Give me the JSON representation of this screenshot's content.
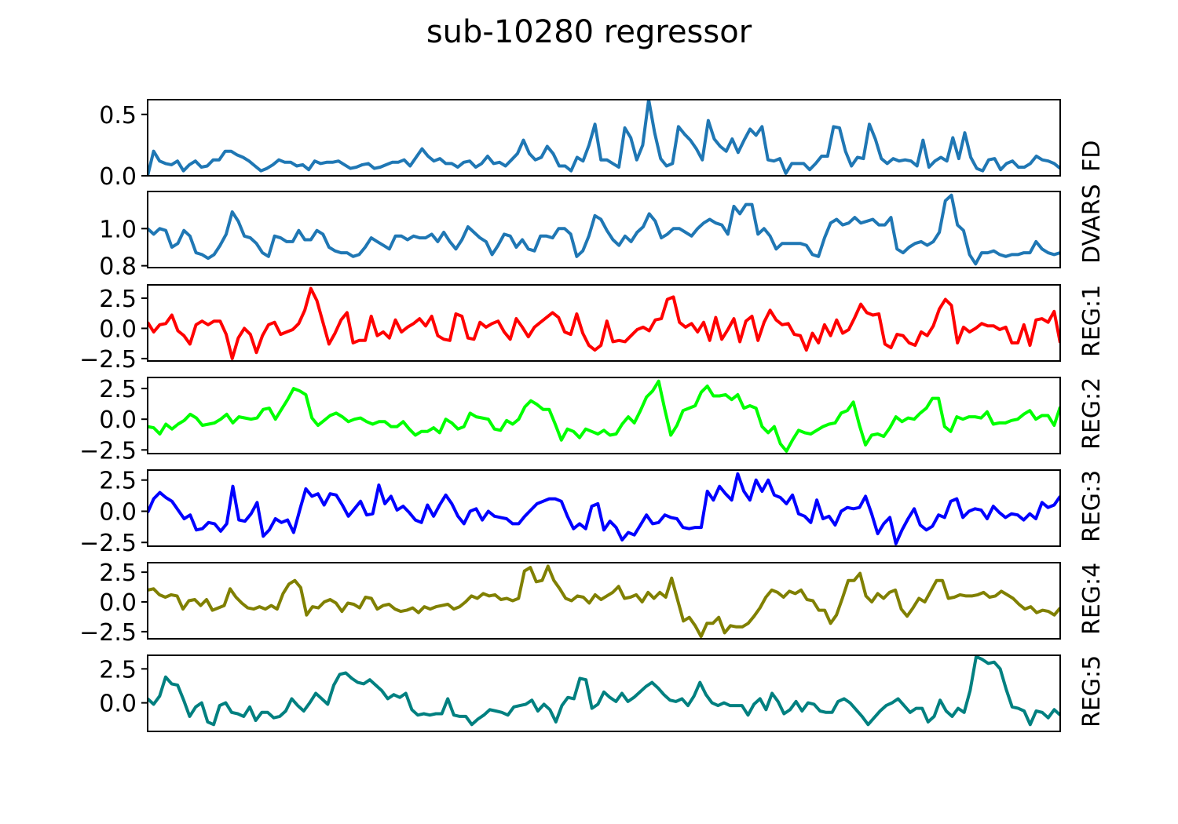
{
  "title": "sub-10280 regressor",
  "chart_data": {
    "type": "line",
    "title": "sub-10280 regressor",
    "n_points": 200,
    "grid": false,
    "x_ticks_visible": false,
    "panels": [
      {
        "name": "FD",
        "color": "#1f77b4",
        "ylim": [
          0.0,
          0.62
        ],
        "yticks": [
          0.0,
          0.5
        ],
        "ytick_labels": [
          "0.0",
          "0.5"
        ],
        "values": [
          0.0,
          0.2,
          0.12,
          0.1,
          0.09,
          0.12,
          0.04,
          0.09,
          0.12,
          0.07,
          0.08,
          0.13,
          0.13,
          0.2,
          0.2,
          0.17,
          0.15,
          0.12,
          0.08,
          0.04,
          0.06,
          0.09,
          0.13,
          0.11,
          0.11,
          0.08,
          0.09,
          0.05,
          0.12,
          0.1,
          0.11,
          0.11,
          0.12,
          0.09,
          0.06,
          0.07,
          0.09,
          0.1,
          0.06,
          0.07,
          0.09,
          0.11,
          0.11,
          0.13,
          0.08,
          0.15,
          0.22,
          0.16,
          0.12,
          0.14,
          0.1,
          0.1,
          0.07,
          0.11,
          0.12,
          0.07,
          0.1,
          0.16,
          0.1,
          0.11,
          0.08,
          0.13,
          0.18,
          0.29,
          0.18,
          0.13,
          0.15,
          0.24,
          0.18,
          0.08,
          0.08,
          0.04,
          0.15,
          0.12,
          0.25,
          0.42,
          0.13,
          0.13,
          0.1,
          0.07,
          0.39,
          0.31,
          0.13,
          0.25,
          0.62,
          0.35,
          0.14,
          0.08,
          0.1,
          0.4,
          0.34,
          0.29,
          0.22,
          0.13,
          0.45,
          0.3,
          0.24,
          0.2,
          0.3,
          0.19,
          0.29,
          0.38,
          0.33,
          0.4,
          0.13,
          0.12,
          0.14,
          0.02,
          0.1,
          0.1,
          0.1,
          0.05,
          0.1,
          0.16,
          0.16,
          0.4,
          0.39,
          0.2,
          0.08,
          0.15,
          0.14,
          0.42,
          0.3,
          0.14,
          0.1,
          0.14,
          0.12,
          0.13,
          0.12,
          0.08,
          0.29,
          0.07,
          0.12,
          0.15,
          0.12,
          0.31,
          0.14,
          0.35,
          0.15,
          0.06,
          0.04,
          0.13,
          0.14,
          0.05,
          0.1,
          0.12,
          0.07,
          0.07,
          0.1,
          0.16,
          0.13,
          0.12,
          0.1,
          0.06
        ]
      },
      {
        "name": "DVARS",
        "color": "#1f77b4",
        "ylim": [
          0.79,
          1.2
        ],
        "yticks": [
          0.8,
          1.0
        ],
        "ytick_labels": [
          "0.8",
          "1.0"
        ],
        "values": [
          1.0,
          0.97,
          1.0,
          0.99,
          0.9,
          0.92,
          0.99,
          0.96,
          0.87,
          0.86,
          0.84,
          0.86,
          0.91,
          0.97,
          1.09,
          1.04,
          0.96,
          0.95,
          0.92,
          0.87,
          0.85,
          0.96,
          0.95,
          0.93,
          0.93,
          0.99,
          0.94,
          0.94,
          0.99,
          0.97,
          0.9,
          0.88,
          0.87,
          0.87,
          0.85,
          0.86,
          0.9,
          0.95,
          0.93,
          0.91,
          0.89,
          0.96,
          0.96,
          0.94,
          0.96,
          0.95,
          0.95,
          0.97,
          0.93,
          0.98,
          0.93,
          0.89,
          0.94,
          1.01,
          0.98,
          0.95,
          0.93,
          0.86,
          0.91,
          0.97,
          0.96,
          0.9,
          0.94,
          0.89,
          0.88,
          0.96,
          0.96,
          0.95,
          1.0,
          1.0,
          0.97,
          0.85,
          0.88,
          0.96,
          1.07,
          1.05,
          0.99,
          0.94,
          0.91,
          0.96,
          0.93,
          0.98,
          1.01,
          1.08,
          1.04,
          0.95,
          0.97,
          1.0,
          1.0,
          0.98,
          0.96,
          1.0,
          1.03,
          1.05,
          1.03,
          1.02,
          0.97,
          1.12,
          1.08,
          1.13,
          1.13,
          0.97,
          1.0,
          0.96,
          0.89,
          0.92,
          0.92,
          0.92,
          0.92,
          0.91,
          0.86,
          0.85,
          0.95,
          1.03,
          1.05,
          1.02,
          1.03,
          1.06,
          1.03,
          1.04,
          1.05,
          1.02,
          1.02,
          1.06,
          0.89,
          0.87,
          0.9,
          0.92,
          0.93,
          0.91,
          0.93,
          0.98,
          1.15,
          1.18,
          1.02,
          0.99,
          0.86,
          0.81,
          0.87,
          0.87,
          0.88,
          0.86,
          0.85,
          0.86,
          0.86,
          0.87,
          0.87,
          0.93,
          0.89,
          0.87,
          0.86,
          0.87
        ]
      },
      {
        "name": "REG:1",
        "color": "#ff0000",
        "ylim": [
          -2.7,
          3.6
        ],
        "yticks": [
          -2.5,
          0.0,
          2.5
        ],
        "ytick_labels": [
          "−2.5",
          "0.0",
          "2.5"
        ],
        "values": [
          0.5,
          -0.3,
          0.3,
          0.4,
          1.1,
          -0.2,
          -0.6,
          -1.3,
          0.3,
          0.6,
          0.3,
          0.6,
          0.6,
          -0.5,
          -2.5,
          -0.8,
          0.0,
          -0.5,
          -2.0,
          -0.6,
          0.3,
          0.5,
          -0.5,
          -0.3,
          -0.1,
          0.4,
          1.5,
          3.3,
          2.3,
          0.5,
          -1.3,
          -0.4,
          0.7,
          1.3,
          -1.2,
          -1.0,
          -1.0,
          1.0,
          -0.6,
          -0.3,
          -0.8,
          0.7,
          -0.3,
          0.1,
          0.4,
          0.8,
          0.2,
          1.0,
          -0.6,
          -0.9,
          -1.0,
          1.2,
          1.0,
          -0.8,
          -0.9,
          0.5,
          0.1,
          0.4,
          0.6,
          -0.3,
          -0.9,
          0.8,
          0.1,
          -0.7,
          0.1,
          0.5,
          0.9,
          1.3,
          0.9,
          -0.3,
          -0.5,
          1.2,
          -0.4,
          -1.4,
          -1.8,
          -1.4,
          0.6,
          -1.1,
          -1.0,
          -1.1,
          -0.6,
          -0.1,
          0.1,
          -0.2,
          0.7,
          0.8,
          2.4,
          2.6,
          0.5,
          0.1,
          0.4,
          -0.3,
          0.5,
          -1.0,
          0.9,
          -0.9,
          -0.1,
          0.8,
          -1.1,
          0.6,
          1.0,
          -1.0,
          0.5,
          1.5,
          0.7,
          0.3,
          0.4,
          -0.5,
          -0.6,
          -1.8,
          -0.4,
          -1.2,
          0.3,
          -0.6,
          0.7,
          -0.4,
          -0.1,
          0.9,
          2.0,
          1.3,
          1.1,
          1.2,
          -1.3,
          -1.6,
          -0.5,
          -0.6,
          -1.2,
          -1.4,
          -0.3,
          -0.6,
          0.2,
          1.6,
          2.4,
          1.9,
          -1.2,
          0.1,
          -0.3,
          0.0,
          0.4,
          0.2,
          0.2,
          -0.1,
          0.1,
          -1.2,
          -1.2,
          0.3,
          -1.4,
          0.7,
          0.8,
          0.5,
          1.4,
          -1.2
        ]
      },
      {
        "name": "REG:2",
        "color": "#00ff00",
        "ylim": [
          -2.8,
          3.4
        ],
        "yticks": [
          -2.5,
          0.0,
          2.5
        ],
        "ytick_labels": [
          "−2.5",
          "0.0",
          "2.5"
        ],
        "values": [
          -0.6,
          -0.7,
          -1.2,
          -0.4,
          -0.8,
          -0.4,
          -0.1,
          0.4,
          0.1,
          -0.5,
          -0.4,
          -0.3,
          0.0,
          0.4,
          -0.3,
          0.2,
          0.1,
          0.0,
          0.1,
          0.8,
          0.9,
          0.0,
          0.8,
          1.6,
          2.5,
          2.3,
          2.0,
          0.1,
          -0.5,
          -0.1,
          0.3,
          0.5,
          0.2,
          -0.2,
          0.0,
          0.1,
          -0.2,
          -0.4,
          -0.2,
          -0.2,
          -0.6,
          -0.6,
          -0.2,
          -0.8,
          -1.3,
          -1.0,
          -1.0,
          -0.7,
          -1.1,
          0.0,
          -0.3,
          -0.8,
          -0.6,
          0.5,
          0.2,
          0.1,
          0.0,
          -0.8,
          -0.9,
          -0.1,
          -0.4,
          0.0,
          1.0,
          1.5,
          1.2,
          0.8,
          0.8,
          -0.4,
          -1.7,
          -0.8,
          -1.0,
          -1.5,
          -0.8,
          -1.0,
          -1.2,
          -0.9,
          -1.3,
          -1.2,
          -0.4,
          0.2,
          -0.3,
          0.7,
          1.8,
          2.3,
          3.1,
          0.8,
          -1.3,
          -0.5,
          0.7,
          0.9,
          1.1,
          2.2,
          2.7,
          1.9,
          1.9,
          2.0,
          1.6,
          2.0,
          0.9,
          1.1,
          0.9,
          -0.6,
          -1.1,
          -0.6,
          -2.0,
          -2.6,
          -1.7,
          -0.9,
          -1.1,
          -1.2,
          -0.9,
          -0.6,
          -0.4,
          -0.3,
          0.5,
          0.7,
          1.4,
          -0.5,
          -2.1,
          -1.3,
          -1.2,
          -1.4,
          -0.7,
          0.2,
          -0.2,
          0.1,
          0.0,
          0.5,
          0.9,
          1.7,
          1.7,
          -0.6,
          -1.0,
          0.2,
          0.0,
          0.2,
          0.2,
          0.1,
          0.6,
          -0.4,
          -0.3,
          -0.3,
          -0.1,
          0.0,
          0.4,
          0.7,
          0.0,
          0.3,
          0.3,
          -0.5,
          1.0
        ]
      },
      {
        "name": "REG:3",
        "color": "#0000ff",
        "ylim": [
          -2.8,
          3.3
        ],
        "yticks": [
          -2.5,
          0.0,
          2.5
        ],
        "ytick_labels": [
          "−2.5",
          "0.0",
          "2.5"
        ],
        "values": [
          -0.1,
          1.0,
          1.5,
          1.1,
          0.8,
          0.1,
          -0.6,
          -0.3,
          -1.5,
          -1.4,
          -0.9,
          -1.0,
          -1.6,
          -1.0,
          2.0,
          -0.7,
          -0.8,
          -0.2,
          0.7,
          -2.0,
          -1.5,
          -0.6,
          -0.9,
          -0.7,
          -1.7,
          0.1,
          1.8,
          1.2,
          1.4,
          0.5,
          1.4,
          1.3,
          0.5,
          -0.4,
          0.2,
          0.8,
          -0.3,
          -0.2,
          2.1,
          0.6,
          1.2,
          0.1,
          0.4,
          -0.1,
          -0.7,
          -0.9,
          0.5,
          -0.4,
          0.5,
          1.3,
          0.6,
          -0.4,
          -1.0,
          0.0,
          0.2,
          -0.7,
          0.0,
          -0.4,
          -0.5,
          -0.6,
          -1.0,
          -1.0,
          -0.4,
          0.1,
          0.6,
          0.8,
          1.0,
          1.0,
          0.8,
          -0.4,
          -1.4,
          -1.0,
          -1.4,
          0.4,
          0.6,
          -1.5,
          -0.8,
          -1.3,
          -2.3,
          -1.7,
          -1.9,
          -1.1,
          -0.3,
          -1.0,
          -0.9,
          -0.3,
          -0.5,
          -0.6,
          -1.3,
          -1.4,
          -1.3,
          -1.3,
          1.6,
          0.9,
          2.0,
          1.4,
          0.9,
          3.0,
          1.6,
          0.9,
          2.5,
          1.6,
          2.5,
          1.3,
          1.1,
          0.6,
          1.3,
          -0.2,
          -0.4,
          -0.9,
          0.9,
          -0.6,
          -0.4,
          -1.1,
          0.0,
          0.3,
          0.2,
          0.3,
          1.2,
          -0.2,
          -1.8,
          -1.0,
          -0.5,
          -2.6,
          -1.5,
          -0.6,
          0.2,
          -1.1,
          -1.5,
          -1.2,
          -0.3,
          -0.5,
          0.8,
          1.0,
          -0.5,
          0.0,
          0.2,
          0.1,
          -0.6,
          0.4,
          -0.1,
          -0.5,
          -0.2,
          -0.3,
          -0.7,
          -0.2,
          -0.6,
          0.7,
          0.3,
          0.5,
          1.2
        ]
      },
      {
        "name": "REG:4",
        "color": "#808000",
        "ylim": [
          -3.1,
          3.3
        ],
        "yticks": [
          -2.5,
          0.0,
          2.5
        ],
        "ytick_labels": [
          "−2.5",
          "0.0",
          "2.5"
        ],
        "values": [
          1.0,
          1.1,
          0.6,
          0.4,
          0.6,
          0.5,
          -0.6,
          0.1,
          0.2,
          -0.3,
          0.2,
          -0.7,
          -0.5,
          -0.3,
          1.1,
          0.4,
          -0.1,
          -0.5,
          -0.6,
          -0.4,
          -0.6,
          -0.3,
          -0.6,
          0.7,
          1.5,
          1.8,
          1.2,
          -1.1,
          -0.4,
          -0.5,
          0.0,
          0.2,
          -0.1,
          -0.8,
          -0.1,
          -0.2,
          -0.5,
          0.4,
          0.3,
          -0.6,
          -0.3,
          -0.2,
          -0.6,
          -0.8,
          -0.7,
          -0.5,
          -0.9,
          -0.4,
          -0.6,
          -0.4,
          -0.3,
          -0.2,
          -0.6,
          -0.4,
          0.0,
          0.5,
          0.3,
          0.7,
          0.5,
          0.6,
          0.2,
          0.3,
          0.1,
          0.3,
          2.6,
          2.9,
          1.7,
          1.8,
          3.0,
          1.8,
          1.1,
          0.3,
          0.1,
          0.5,
          0.4,
          -0.1,
          0.6,
          0.2,
          0.5,
          0.8,
          1.3,
          0.3,
          0.4,
          0.6,
          0.0,
          0.8,
          0.3,
          0.8,
          0.4,
          2.0,
          0.2,
          -1.6,
          -1.3,
          -2.0,
          -2.9,
          -1.8,
          -1.8,
          -1.3,
          -2.6,
          -2.0,
          -2.1,
          -2.1,
          -1.8,
          -1.2,
          -0.5,
          0.4,
          1.0,
          0.8,
          0.4,
          0.9,
          0.7,
          1.0,
          0.2,
          0.1,
          -0.7,
          -0.7,
          -1.8,
          -1.1,
          0.3,
          1.8,
          1.8,
          2.4,
          0.5,
          0.0,
          0.7,
          0.3,
          0.8,
          1.0,
          -0.6,
          -1.2,
          -0.5,
          0.3,
          0.0,
          0.9,
          1.8,
          1.8,
          0.3,
          0.4,
          0.6,
          0.5,
          0.5,
          0.6,
          0.8,
          0.4,
          0.5,
          0.9,
          0.6,
          0.3,
          -0.2,
          -0.6,
          -0.4,
          -0.9,
          -0.7,
          -0.8,
          -1.1,
          -0.5
        ]
      },
      {
        "name": "REG:5",
        "color": "#008080",
        "ylim": [
          -2.1,
          3.5
        ],
        "yticks": [
          0.0,
          2.5
        ],
        "ytick_labels": [
          "0.0",
          "2.5"
        ],
        "values": [
          0.3,
          -0.1,
          0.5,
          1.9,
          1.4,
          1.3,
          0.2,
          -1.0,
          -0.3,
          0.0,
          -1.4,
          -1.6,
          -0.2,
          0.0,
          -0.7,
          -0.8,
          -1.0,
          -0.3,
          -1.3,
          -0.7,
          -0.7,
          -1.1,
          -1.0,
          -0.6,
          0.3,
          -0.2,
          -0.6,
          0.0,
          0.7,
          0.3,
          -0.1,
          1.3,
          2.1,
          2.2,
          1.8,
          1.5,
          1.4,
          1.7,
          1.3,
          0.9,
          0.3,
          0.6,
          0.4,
          0.7,
          -0.5,
          -0.9,
          -0.8,
          -0.9,
          -0.8,
          -0.8,
          0.3,
          -0.9,
          -1.0,
          -1.0,
          -1.6,
          -1.2,
          -0.9,
          -0.5,
          -0.6,
          -0.7,
          -0.9,
          -0.3,
          -0.2,
          -0.1,
          0.2,
          -0.6,
          -0.1,
          -0.5,
          -1.4,
          -0.2,
          0.4,
          0.3,
          1.8,
          1.7,
          -0.4,
          -0.1,
          0.8,
          0.4,
          0.1,
          0.7,
          0.1,
          0.4,
          0.8,
          1.2,
          1.5,
          1.1,
          0.6,
          0.2,
          0.1,
          0.3,
          -0.2,
          0.5,
          1.5,
          0.6,
          0.0,
          -0.2,
          0.0,
          -0.2,
          -0.2,
          -0.2,
          -0.9,
          -0.1,
          0.3,
          -0.5,
          0.7,
          0.1,
          -0.8,
          -0.5,
          0.1,
          -0.6,
          0.0,
          -0.1,
          -0.6,
          -0.7,
          -0.7,
          0.1,
          0.3,
          0.0,
          -0.5,
          -1.0,
          -1.6,
          -1.1,
          -0.6,
          -0.2,
          0.0,
          0.3,
          -0.2,
          -0.7,
          -0.4,
          -0.4,
          -1.4,
          -1.0,
          0.2,
          -0.6,
          -1.0,
          -0.4,
          -0.7,
          0.9,
          3.4,
          3.2,
          2.9,
          3.0,
          2.5,
          1.0,
          -0.3,
          -0.4,
          -0.6,
          -1.6,
          -0.6,
          -0.7,
          -1.1,
          -0.5,
          -0.9
        ]
      }
    ]
  }
}
